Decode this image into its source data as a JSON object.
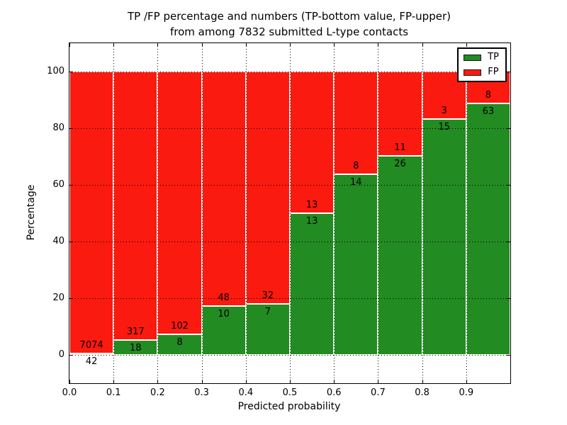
{
  "title": {
    "line1": "TP /FP percentage and numbers (TP-bottom value, FP-upper)",
    "line2": "from among 7832 submitted L-type contacts"
  },
  "chart_data": {
    "type": "bar",
    "stacked": true,
    "normalized_to_percent": true,
    "bin_edges": [
      0.0,
      0.1,
      0.2,
      0.3,
      0.4,
      0.5,
      0.6,
      0.7,
      0.8,
      0.9,
      1.0
    ],
    "categories": [
      "0.0-0.1",
      "0.1-0.2",
      "0.2-0.3",
      "0.3-0.4",
      "0.4-0.5",
      "0.5-0.6",
      "0.6-0.7",
      "0.7-0.8",
      "0.8-0.9",
      "0.9-1.0"
    ],
    "series": [
      {
        "name": "TP",
        "color": "#228b22",
        "position": "bottom",
        "values": [
          42,
          18,
          8,
          10,
          7,
          13,
          14,
          26,
          15,
          63
        ]
      },
      {
        "name": "FP",
        "color": "#fb1a0f",
        "position": "upper",
        "values": [
          7074,
          317,
          102,
          48,
          32,
          13,
          8,
          11,
          3,
          8
        ]
      }
    ],
    "total_contacts": 7832,
    "xlabel": "Predicted probability",
    "ylabel": "Percentage",
    "x_ticks": [
      "0.0",
      "0.1",
      "0.2",
      "0.3",
      "0.4",
      "0.5",
      "0.6",
      "0.7",
      "0.8",
      "0.9"
    ],
    "y_ticks": [
      "0",
      "20",
      "40",
      "60",
      "80",
      "100"
    ],
    "xlim": [
      0.0,
      1.0
    ],
    "ylim": [
      -10,
      110
    ],
    "grid": "dotted, drawn above bars",
    "legend": {
      "position": "upper right",
      "entries": [
        "TP",
        "FP"
      ]
    }
  }
}
